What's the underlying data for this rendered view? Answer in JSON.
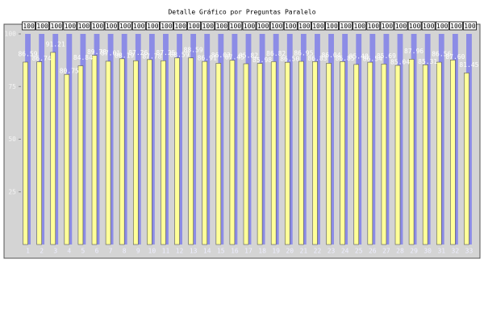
{
  "chart_data": {
    "type": "bar",
    "title": "Detalle Gráfico por Preguntas Paralelo",
    "categories": [
      "1",
      "2",
      "3",
      "4",
      "5",
      "6",
      "7",
      "8",
      "9",
      "10",
      "11",
      "12",
      "13",
      "14",
      "15",
      "16",
      "17",
      "18",
      "19",
      "20",
      "21",
      "22",
      "23",
      "24",
      "25",
      "26",
      "27",
      "28",
      "29",
      "30",
      "31",
      "32",
      "33"
    ],
    "series": [
      {
        "color": "#8c8ce6",
        "values": [
          100,
          100,
          100,
          100,
          100,
          100,
          100,
          100,
          100,
          100,
          100,
          100,
          100,
          100,
          100,
          100,
          100,
          100,
          100,
          100,
          100,
          100,
          100,
          100,
          100,
          100,
          100,
          100,
          100,
          100,
          100,
          100,
          100
        ]
      },
      {
        "color": "#ffff99",
        "values": [
          86.59,
          86.74,
          91.21,
          80.75,
          84.84,
          89.78,
          87.01,
          88.19,
          87.26,
          87.78,
          87.25,
          88.59,
          88.59,
          86.91,
          86.03,
          87.45,
          85.82,
          85.98,
          86.82,
          86.5,
          86.95,
          86.83,
          86.04,
          86.85,
          85.48,
          86.54,
          85.69,
          85.04,
          87.96,
          85.31,
          86.56,
          87.6,
          81.45
        ],
        "value_labels": [
          "86.59",
          "86.74",
          "91.21",
          "80.75",
          "84.84",
          "89.78",
          "87.01",
          "88.19",
          "87.26",
          "87.78",
          "87.25",
          "88.59",
          "88.59",
          "86.91",
          "86.03",
          "87.45",
          "85.82",
          "85.98",
          "86.82",
          "86.50",
          "86.95",
          "86.83",
          "86.04",
          "86.85",
          "85.48",
          "86.54",
          "85.69",
          "85.04",
          "87.96",
          "85.31",
          "86.56",
          "87.60",
          "81.45"
        ]
      }
    ],
    "ylim": [
      0,
      100
    ],
    "yticks": [
      25,
      50,
      75,
      100
    ]
  }
}
